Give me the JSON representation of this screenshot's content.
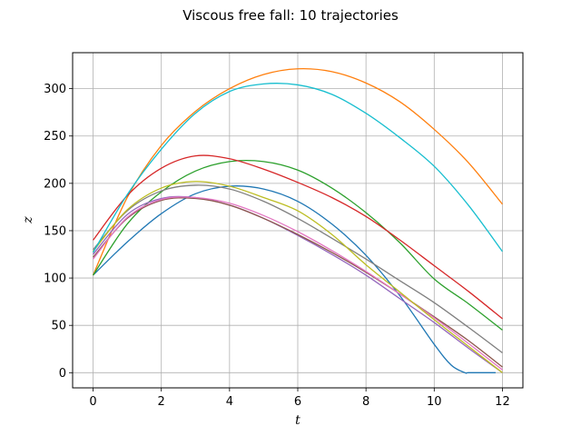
{
  "chart_data": {
    "type": "line",
    "title": "Viscous free fall: 10 trajectories",
    "xlabel": "t",
    "ylabel": "z",
    "xlim": [
      -0.6,
      12.6
    ],
    "ylim": [
      -16,
      338
    ],
    "xticks": [
      0,
      2,
      4,
      6,
      8,
      10,
      12
    ],
    "yticks": [
      0,
      50,
      100,
      150,
      200,
      250,
      300
    ],
    "grid": true,
    "legend": "none",
    "series": [
      {
        "color": "#1f77b4",
        "x": [
          0,
          1,
          2,
          3,
          4,
          5,
          6,
          7,
          8,
          9,
          10,
          10.5,
          10.9,
          11,
          11.5,
          11.8
        ],
        "values": [
          103,
          138,
          168,
          189,
          197,
          194,
          181,
          157,
          124,
          81,
          30,
          8,
          0,
          0,
          0,
          0
        ]
      },
      {
        "color": "#ff7f0e",
        "x": [
          0,
          1,
          2,
          3,
          4,
          5,
          6,
          7,
          8,
          9,
          10,
          11,
          12
        ],
        "values": [
          103,
          185,
          240,
          276,
          300,
          315,
          321,
          318,
          306,
          286,
          257,
          222,
          178
        ]
      },
      {
        "color": "#2ca02c",
        "x": [
          0,
          1,
          2,
          3,
          4,
          5,
          6,
          7,
          8,
          9,
          10,
          11,
          12
        ],
        "values": [
          103,
          157,
          191,
          213,
          223,
          223,
          214,
          195,
          169,
          137,
          99,
          73,
          45
        ]
      },
      {
        "color": "#d62728",
        "x": [
          0,
          1,
          2,
          3,
          4,
          5,
          6,
          7,
          8,
          9,
          10,
          11,
          12
        ],
        "values": [
          140,
          187,
          216,
          229,
          226,
          215,
          201,
          185,
          165,
          140,
          113,
          86,
          57
        ]
      },
      {
        "color": "#9467bd",
        "x": [
          0,
          1,
          2,
          3,
          4,
          5,
          6,
          7,
          8,
          9,
          10,
          11,
          12
        ],
        "values": [
          125,
          167,
          184,
          185,
          177,
          163,
          145,
          125,
          103,
          78,
          53,
          26,
          0
        ]
      },
      {
        "color": "#8c564b",
        "x": [
          0,
          1,
          2,
          3,
          4,
          5,
          6,
          7,
          8,
          9,
          10,
          11,
          12
        ],
        "values": [
          122,
          163,
          182,
          184,
          177,
          163,
          146,
          127,
          106,
          83,
          59,
          34,
          6
        ]
      },
      {
        "color": "#e377c2",
        "x": [
          0,
          1,
          2,
          3,
          4,
          5,
          6,
          7,
          8,
          9,
          10,
          11,
          12
        ],
        "values": [
          120,
          164,
          183,
          185,
          179,
          166,
          149,
          129,
          107,
          83,
          58,
          31,
          3
        ]
      },
      {
        "color": "#7f7f7f",
        "x": [
          0,
          1,
          2,
          3,
          4,
          5,
          6,
          7,
          8,
          9,
          10,
          11,
          12
        ],
        "values": [
          130,
          171,
          192,
          198,
          194,
          181,
          163,
          142,
          120,
          97,
          74,
          48,
          21
        ]
      },
      {
        "color": "#bcbd22",
        "x": [
          0,
          1,
          2,
          3,
          4,
          5,
          6,
          7,
          8,
          9,
          10,
          11,
          12
        ],
        "values": [
          128,
          172,
          195,
          202,
          197,
          185,
          171,
          146,
          114,
          85,
          56,
          28,
          0
        ]
      },
      {
        "color": "#17becf",
        "x": [
          0,
          1,
          2,
          3,
          4,
          5,
          6,
          7,
          8,
          9,
          10,
          11,
          12
        ],
        "values": [
          127,
          188,
          236,
          274,
          297,
          305,
          304,
          294,
          274,
          248,
          218,
          177,
          128
        ]
      }
    ]
  }
}
